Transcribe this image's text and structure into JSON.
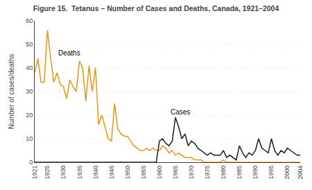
{
  "chart_data": {
    "type": "line",
    "title": "Figure 15.  Tetanus – Number of Cases and Deaths, Canada, 1921–2004",
    "y_label": "Number of cases/deaths",
    "x": [
      1921,
      1922,
      1923,
      1924,
      1925,
      1926,
      1927,
      1928,
      1929,
      1930,
      1931,
      1932,
      1933,
      1934,
      1935,
      1936,
      1937,
      1938,
      1939,
      1940,
      1941,
      1942,
      1943,
      1944,
      1945,
      1946,
      1947,
      1948,
      1949,
      1950,
      1951,
      1952,
      1953,
      1954,
      1955,
      1956,
      1957,
      1958,
      1959,
      1960,
      1961,
      1962,
      1963,
      1964,
      1965,
      1966,
      1967,
      1968,
      1969,
      1970,
      1971,
      1972,
      1973,
      1974,
      1975,
      1976,
      1977,
      1978,
      1979,
      1980,
      1981,
      1982,
      1983,
      1984,
      1985,
      1986,
      1987,
      1988,
      1989,
      1990,
      1991,
      1992,
      1993,
      1994,
      1995,
      1996,
      1997,
      1998,
      1999,
      2000,
      2001,
      2002,
      2003,
      2004
    ],
    "series": [
      {
        "name": "Deaths",
        "color": "#e8960a",
        "values": [
          38,
          44,
          34,
          34,
          56,
          44,
          34,
          38,
          33,
          32,
          27,
          35,
          32,
          30,
          43,
          40,
          26,
          41,
          30,
          40,
          16,
          20,
          15,
          10,
          9,
          25,
          14,
          12,
          11,
          11,
          9,
          7,
          6,
          5,
          5,
          6,
          5,
          6,
          5,
          5,
          7,
          6,
          4,
          5,
          3,
          4,
          3,
          2,
          2,
          2,
          1,
          1,
          1,
          0,
          0,
          0,
          0,
          0,
          0,
          1,
          0,
          0,
          0,
          0,
          0,
          0,
          0,
          0,
          0,
          0,
          0,
          0,
          0,
          0,
          0,
          0,
          0,
          0,
          0,
          0,
          0,
          0,
          0,
          0
        ]
      },
      {
        "name": "Cases",
        "color": "#1a1a1a",
        "values": [
          0,
          0,
          0,
          0,
          0,
          0,
          0,
          0,
          0,
          0,
          0,
          0,
          0,
          0,
          0,
          0,
          0,
          0,
          0,
          0,
          0,
          0,
          0,
          0,
          0,
          0,
          0,
          0,
          0,
          0,
          0,
          0,
          0,
          0,
          0,
          0,
          0,
          0,
          0,
          9,
          10,
          8,
          7,
          9,
          19,
          15,
          10,
          12,
          7,
          9,
          8,
          6,
          5,
          4,
          3,
          4,
          3,
          3,
          3,
          5,
          2,
          3,
          2,
          1,
          7,
          4,
          2,
          4,
          3,
          5,
          10,
          6,
          5,
          4,
          10,
          5,
          3,
          5,
          4,
          6,
          5,
          4,
          3,
          3
        ]
      }
    ],
    "annotations": [
      {
        "text": "Deaths",
        "x": 1928,
        "y": 44
      },
      {
        "text": "Cases",
        "x": 1963,
        "y": 19
      }
    ],
    "xlim": [
      1921,
      2004
    ],
    "xticks": [
      1921,
      1925,
      1930,
      1935,
      1940,
      1945,
      1950,
      1955,
      1960,
      1965,
      1970,
      1975,
      1980,
      1985,
      1990,
      1995,
      2000,
      2004
    ],
    "ylim": [
      0,
      60
    ],
    "yticks": [
      0,
      10,
      20,
      30,
      40,
      50,
      60
    ],
    "grid": true
  }
}
